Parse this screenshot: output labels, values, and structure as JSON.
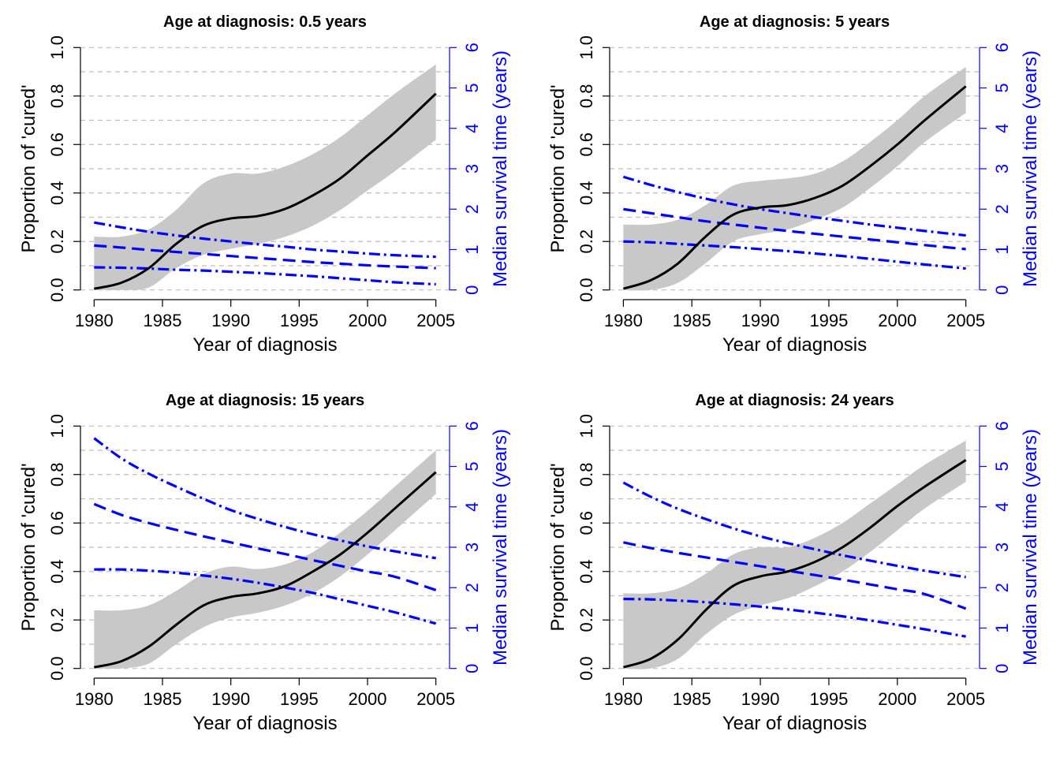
{
  "chart_data": [
    {
      "type": "line",
      "title": "Age at diagnosis: 0.5 years",
      "xlabel": "Year of diagnosis",
      "ylabel": "Proportion of 'cured'",
      "y2label": "Median survival time (years)",
      "xlim": [
        1980,
        2005
      ],
      "ylim": [
        0,
        1
      ],
      "y2lim": [
        0,
        6
      ],
      "xticks": [
        "1980",
        "1985",
        "1990",
        "1995",
        "2000",
        "2005"
      ],
      "yticks": [
        "0.0",
        "0.2",
        "0.4",
        "0.6",
        "0.8",
        "1.0"
      ],
      "y2ticks": [
        "0",
        "1",
        "2",
        "3",
        "4",
        "5",
        "6"
      ],
      "grid": "horizontal dashed",
      "x": [
        1980,
        1982,
        1984,
        1986,
        1988,
        1990,
        1992,
        1994,
        1996,
        1998,
        2000,
        2002,
        2005
      ],
      "cured": {
        "estimate": [
          0.005,
          0.03,
          0.09,
          0.19,
          0.265,
          0.295,
          0.305,
          0.335,
          0.39,
          0.46,
          0.555,
          0.65,
          0.81
        ],
        "lower": [
          0.0,
          0.0,
          0.01,
          0.09,
          0.145,
          0.17,
          0.19,
          0.22,
          0.265,
          0.33,
          0.41,
          0.49,
          0.62
        ],
        "upper": [
          0.22,
          0.22,
          0.25,
          0.33,
          0.44,
          0.48,
          0.48,
          0.51,
          0.56,
          0.63,
          0.72,
          0.81,
          0.93
        ]
      },
      "median_survival": {
        "dotdash_upper": [
          1.67,
          1.55,
          1.44,
          1.35,
          1.27,
          1.2,
          1.13,
          1.07,
          1.0,
          0.95,
          0.9,
          0.86,
          0.82
        ],
        "dashed": [
          1.1,
          1.05,
          0.99,
          0.94,
          0.89,
          0.84,
          0.79,
          0.74,
          0.69,
          0.65,
          0.61,
          0.58,
          0.54
        ],
        "dotdash_lower": [
          0.56,
          0.55,
          0.53,
          0.5,
          0.48,
          0.45,
          0.42,
          0.38,
          0.34,
          0.29,
          0.24,
          0.19,
          0.14
        ]
      }
    },
    {
      "type": "line",
      "title": "Age at diagnosis: 5 years",
      "xlabel": "Year of diagnosis",
      "ylabel": "Proportion of 'cured'",
      "y2label": "Median survival time (years)",
      "xlim": [
        1980,
        2005
      ],
      "ylim": [
        0,
        1
      ],
      "y2lim": [
        0,
        6
      ],
      "xticks": [
        "1980",
        "1985",
        "1990",
        "1995",
        "2000",
        "2005"
      ],
      "yticks": [
        "0.0",
        "0.2",
        "0.4",
        "0.6",
        "0.8",
        "1.0"
      ],
      "y2ticks": [
        "0",
        "1",
        "2",
        "3",
        "4",
        "5",
        "6"
      ],
      "grid": "horizontal dashed",
      "x": [
        1980,
        1982,
        1984,
        1986,
        1988,
        1990,
        1992,
        1994,
        1996,
        1998,
        2000,
        2002,
        2005
      ],
      "cured": {
        "estimate": [
          0.005,
          0.04,
          0.11,
          0.22,
          0.31,
          0.34,
          0.35,
          0.38,
          0.43,
          0.51,
          0.6,
          0.7,
          0.84
        ],
        "lower": [
          0.0,
          0.0,
          0.03,
          0.11,
          0.2,
          0.23,
          0.25,
          0.29,
          0.34,
          0.42,
          0.51,
          0.61,
          0.73
        ],
        "upper": [
          0.27,
          0.27,
          0.29,
          0.35,
          0.43,
          0.45,
          0.46,
          0.48,
          0.53,
          0.61,
          0.7,
          0.8,
          0.92
        ]
      },
      "median_survival": {
        "dotdash_upper": [
          2.8,
          2.6,
          2.42,
          2.26,
          2.12,
          2.0,
          1.9,
          1.8,
          1.71,
          1.62,
          1.54,
          1.46,
          1.35
        ],
        "dashed": [
          2.0,
          1.9,
          1.8,
          1.7,
          1.62,
          1.54,
          1.46,
          1.39,
          1.32,
          1.25,
          1.18,
          1.11,
          1.01
        ],
        "dotdash_lower": [
          1.2,
          1.18,
          1.14,
          1.1,
          1.06,
          1.01,
          0.96,
          0.9,
          0.84,
          0.77,
          0.7,
          0.63,
          0.53
        ]
      }
    },
    {
      "type": "line",
      "title": "Age at diagnosis: 15 years",
      "xlabel": "Year of diagnosis",
      "ylabel": "Proportion of 'cured'",
      "y2label": "Median survival time (years)",
      "xlim": [
        1980,
        2005
      ],
      "ylim": [
        0,
        1
      ],
      "y2lim": [
        0,
        6
      ],
      "xticks": [
        "1980",
        "1985",
        "1990",
        "1995",
        "2000",
        "2005"
      ],
      "yticks": [
        "0.0",
        "0.2",
        "0.4",
        "0.6",
        "0.8",
        "1.0"
      ],
      "y2ticks": [
        "0",
        "1",
        "2",
        "3",
        "4",
        "5",
        "6"
      ],
      "grid": "horizontal dashed",
      "x": [
        1980,
        1982,
        1984,
        1986,
        1988,
        1990,
        1992,
        1994,
        1996,
        1998,
        2000,
        2002,
        2005
      ],
      "cured": {
        "estimate": [
          0.005,
          0.03,
          0.09,
          0.18,
          0.26,
          0.295,
          0.31,
          0.34,
          0.4,
          0.47,
          0.56,
          0.66,
          0.81
        ],
        "lower": [
          0.0,
          0.0,
          0.02,
          0.1,
          0.17,
          0.21,
          0.23,
          0.26,
          0.31,
          0.38,
          0.47,
          0.57,
          0.72
        ],
        "upper": [
          0.24,
          0.24,
          0.26,
          0.32,
          0.39,
          0.42,
          0.41,
          0.43,
          0.48,
          0.56,
          0.65,
          0.75,
          0.9
        ]
      },
      "median_survival": {
        "dotdash_upper": [
          5.7,
          5.2,
          4.82,
          4.5,
          4.2,
          3.92,
          3.7,
          3.5,
          3.32,
          3.17,
          3.02,
          2.9,
          2.73
        ],
        "dashed": [
          4.07,
          3.8,
          3.6,
          3.43,
          3.27,
          3.12,
          2.97,
          2.83,
          2.68,
          2.54,
          2.4,
          2.27,
          1.94
        ],
        "dotdash_lower": [
          2.45,
          2.45,
          2.42,
          2.37,
          2.3,
          2.22,
          2.12,
          2.0,
          1.87,
          1.71,
          1.55,
          1.39,
          1.11
        ]
      }
    },
    {
      "type": "line",
      "title": "Age at diagnosis: 24 years",
      "xlabel": "Year of diagnosis",
      "ylabel": "Proportion of 'cured'",
      "y2label": "Median survival time (years)",
      "xlim": [
        1980,
        2005
      ],
      "ylim": [
        0,
        1
      ],
      "y2lim": [
        0,
        6
      ],
      "xticks": [
        "1980",
        "1985",
        "1990",
        "1995",
        "2000",
        "2005"
      ],
      "yticks": [
        "0.0",
        "0.2",
        "0.4",
        "0.6",
        "0.8",
        "1.0"
      ],
      "y2ticks": [
        "0",
        "1",
        "2",
        "3",
        "4",
        "5",
        "6"
      ],
      "grid": "horizontal dashed",
      "x": [
        1980,
        1982,
        1984,
        1986,
        1988,
        1990,
        1992,
        1994,
        1996,
        1998,
        2000,
        2002,
        2005
      ],
      "cured": {
        "estimate": [
          0.005,
          0.04,
          0.12,
          0.24,
          0.34,
          0.38,
          0.4,
          0.44,
          0.5,
          0.58,
          0.67,
          0.75,
          0.86
        ],
        "lower": [
          0.0,
          0.0,
          0.04,
          0.14,
          0.22,
          0.26,
          0.29,
          0.34,
          0.4,
          0.48,
          0.57,
          0.66,
          0.77
        ],
        "upper": [
          0.31,
          0.31,
          0.33,
          0.39,
          0.47,
          0.5,
          0.5,
          0.54,
          0.6,
          0.68,
          0.76,
          0.84,
          0.94
        ]
      },
      "median_survival": {
        "dotdash_upper": [
          4.6,
          4.25,
          3.95,
          3.7,
          3.47,
          3.27,
          3.1,
          2.95,
          2.8,
          2.67,
          2.54,
          2.42,
          2.26
        ],
        "dashed": [
          3.12,
          2.98,
          2.86,
          2.75,
          2.64,
          2.53,
          2.42,
          2.31,
          2.2,
          2.08,
          1.96,
          1.84,
          1.48
        ],
        "dotdash_lower": [
          1.72,
          1.71,
          1.68,
          1.64,
          1.59,
          1.53,
          1.46,
          1.38,
          1.29,
          1.19,
          1.08,
          0.97,
          0.79
        ]
      }
    }
  ],
  "colors": {
    "cured_line": "#000000",
    "ci_band": "#c8c8c8",
    "survival_lines": "#0000ff",
    "grid": "#bebebe",
    "axis": "#000000",
    "right_axis": "#0000ff"
  }
}
